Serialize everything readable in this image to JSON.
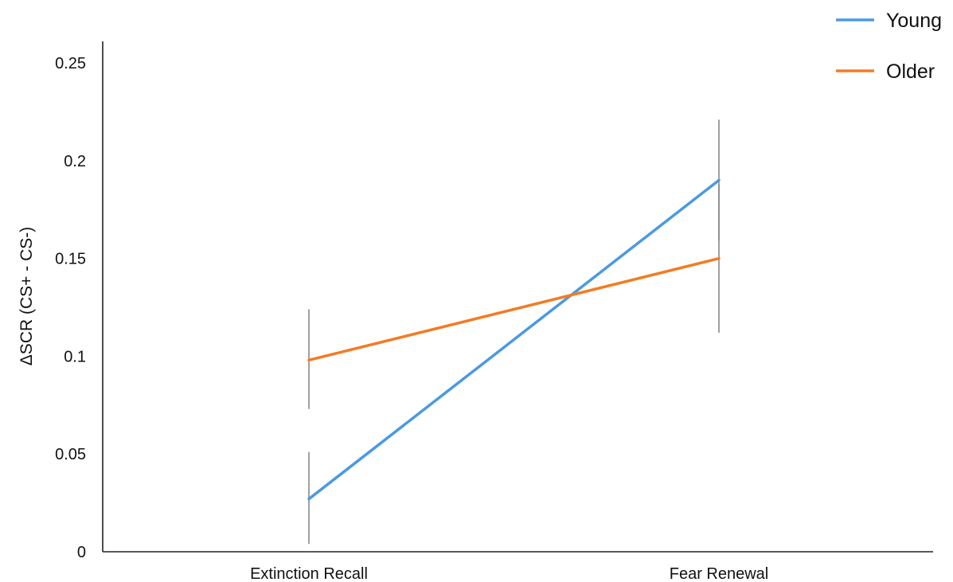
{
  "chart_data": {
    "type": "line",
    "title": "",
    "xlabel": "",
    "ylabel": "ΔSCR (CS+ - CS-)",
    "categories": [
      "Extinction Recall",
      "Fear Renewal"
    ],
    "ylim": [
      0,
      0.25
    ],
    "yticks": [
      {
        "value": 0,
        "label": "0"
      },
      {
        "value": 0.05,
        "label": "0.05"
      },
      {
        "value": 0.1,
        "label": "0.1"
      },
      {
        "value": 0.15,
        "label": "0.15"
      },
      {
        "value": 0.2,
        "label": "0.2"
      },
      {
        "value": 0.25,
        "label": "0.25"
      }
    ],
    "grid": false,
    "legend_position": "top-right",
    "series": [
      {
        "name": "Young",
        "color": "#4a9ae0",
        "values": [
          0.027,
          0.19
        ],
        "error_low": [
          0.004,
          0.159
        ],
        "error_high": [
          0.051,
          0.221
        ]
      },
      {
        "name": "Older",
        "color": "#f47b22",
        "values": [
          0.098,
          0.15
        ],
        "error_low": [
          0.073,
          0.112
        ],
        "error_high": [
          0.124,
          0.188
        ]
      }
    ]
  }
}
